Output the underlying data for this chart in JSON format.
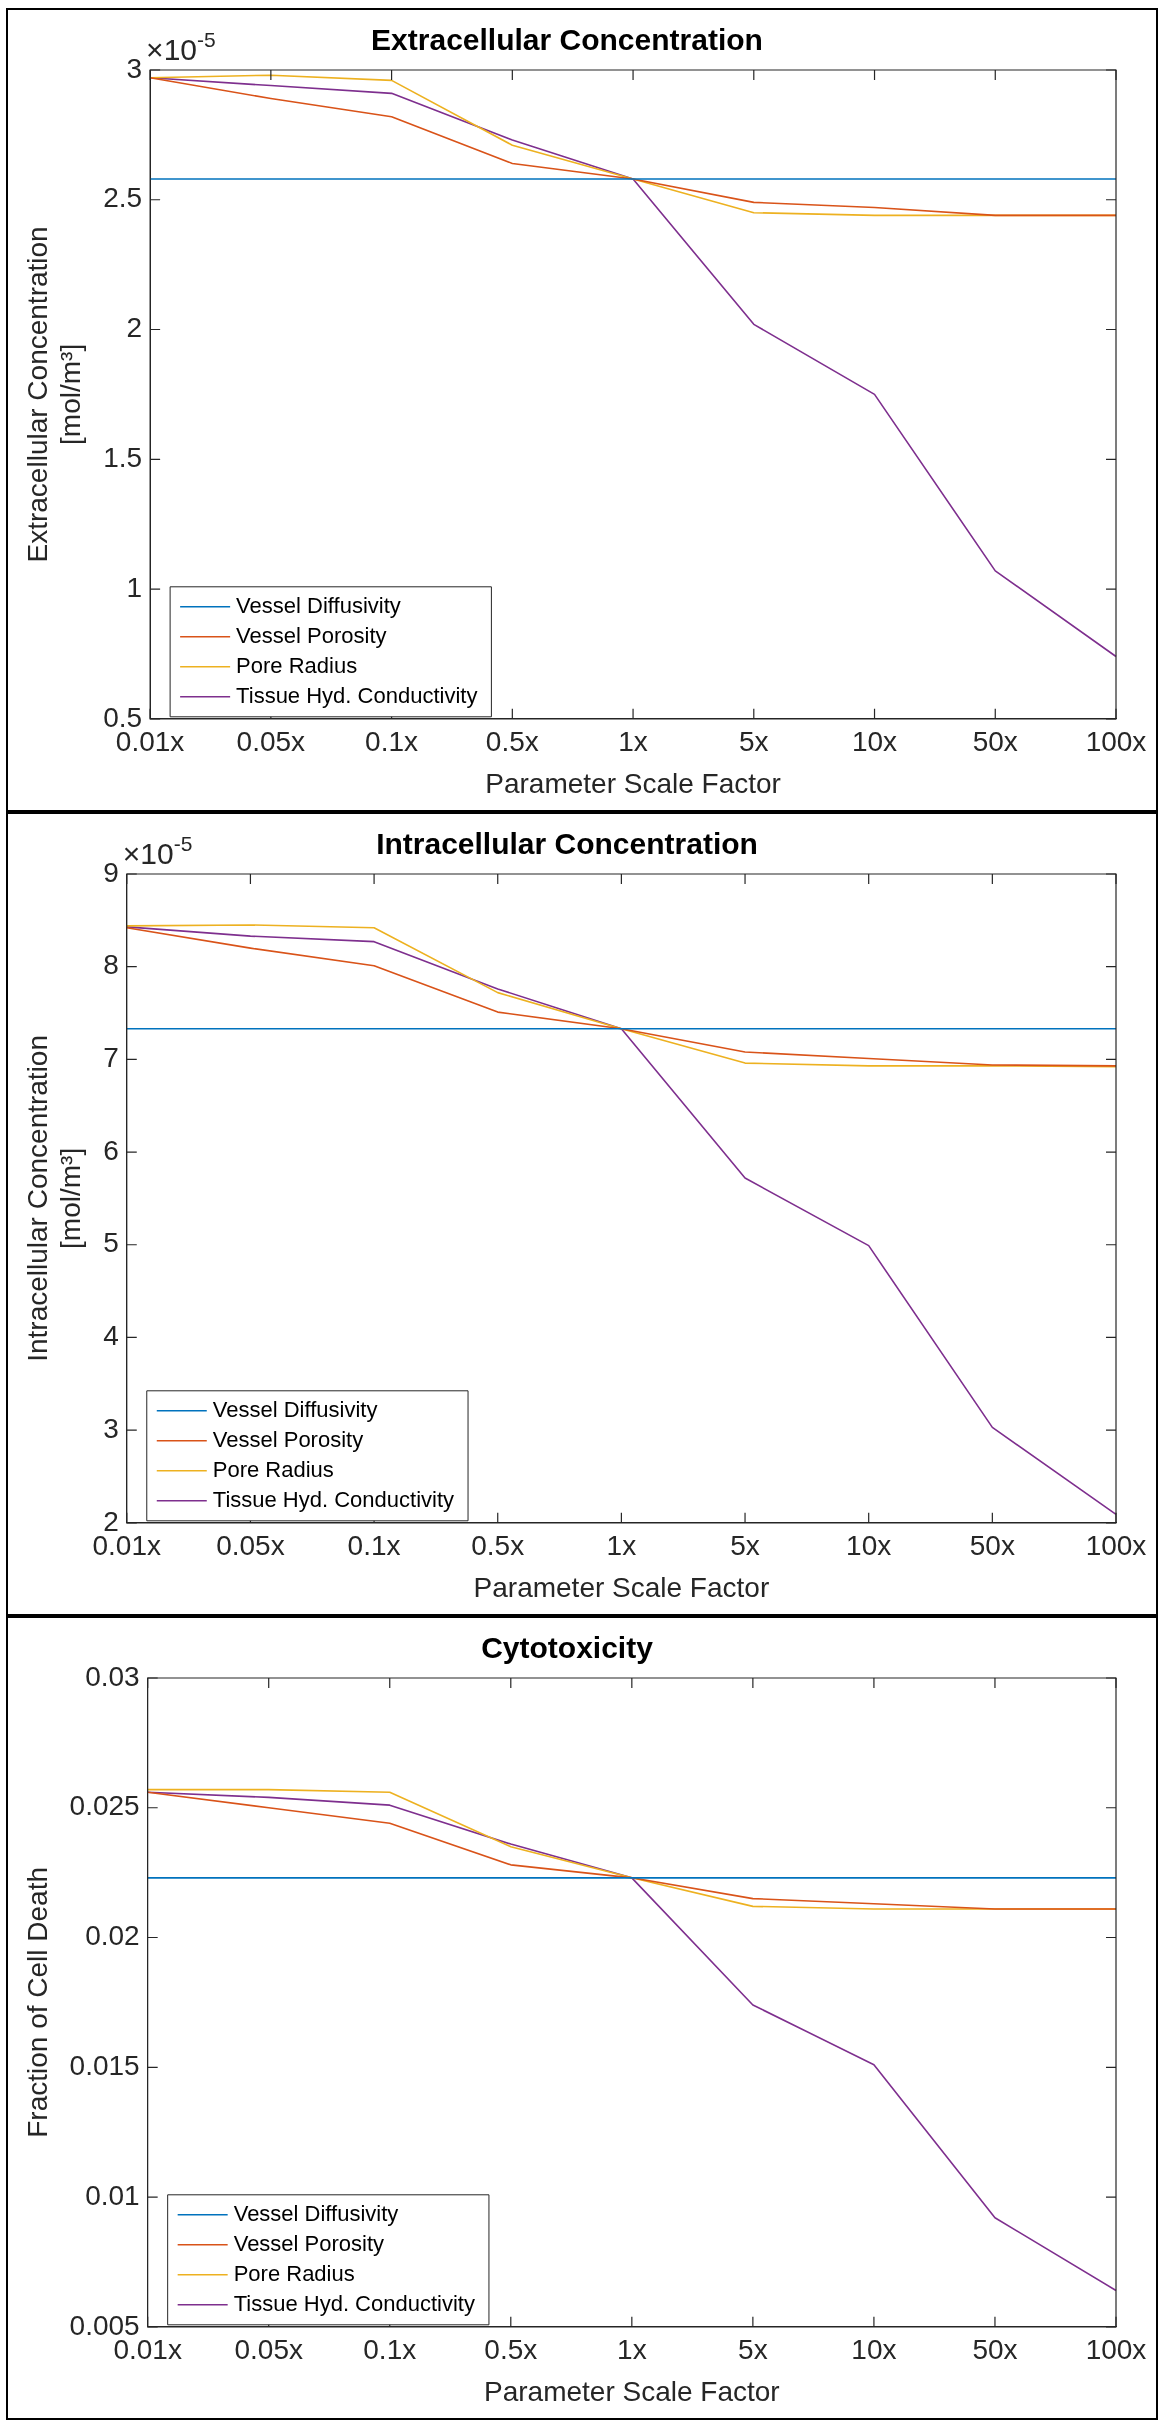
{
  "chart_data": [
    {
      "type": "line",
      "title": "Extracellular Concentration",
      "xlabel": "Parameter Scale Factor",
      "ylabel": "Extracellular Concentration [mol/m³]",
      "categories": [
        "0.01x",
        "0.05x",
        "0.1x",
        "0.5x",
        "1x",
        "5x",
        "10x",
        "50x",
        "100x"
      ],
      "series": [
        {
          "name": "Vessel Diffusivity",
          "color": "#0072bd",
          "values": [
            2.58,
            2.58,
            2.58,
            2.58,
            2.58,
            2.58,
            2.58,
            2.58,
            2.58
          ]
        },
        {
          "name": "Vessel Porosity",
          "color": "#d95319",
          "values": [
            2.97,
            2.89,
            2.82,
            2.64,
            2.58,
            2.49,
            2.47,
            2.44,
            2.44
          ]
        },
        {
          "name": "Pore Radius",
          "color": "#edb120",
          "values": [
            2.97,
            2.98,
            2.96,
            2.71,
            2.58,
            2.45,
            2.44,
            2.44,
            2.44
          ]
        },
        {
          "name": "Tissue Hyd. Conductivity",
          "color": "#7e2f8e",
          "values": [
            2.97,
            2.94,
            2.91,
            2.73,
            2.58,
            2.02,
            1.75,
            1.07,
            0.74
          ]
        }
      ],
      "ylim": [
        0.5,
        3
      ],
      "yticks": [
        0.5,
        1,
        1.5,
        2,
        2.5,
        3
      ],
      "annotations": [
        "×10$^{-5}$"
      ],
      "grid": false,
      "legend": "bottom left",
      "marker": "none",
      "line_style": "solid"
    },
    {
      "type": "line",
      "title": "Intracellular Concentration",
      "xlabel": "Parameter Scale Factor",
      "ylabel": "Intracellular Concentration [mol/m³]",
      "categories": [
        "0.01x",
        "0.05x",
        "0.1x",
        "0.5x",
        "1x",
        "5x",
        "10x",
        "50x",
        "100x"
      ],
      "series": [
        {
          "name": "Vessel Diffusivity",
          "color": "#0072bd",
          "values": [
            7.33,
            7.33,
            7.33,
            7.33,
            7.33,
            7.33,
            7.33,
            7.33,
            7.33
          ]
        },
        {
          "name": "Vessel Porosity",
          "color": "#d95319",
          "values": [
            8.42,
            8.2,
            8.01,
            7.51,
            7.33,
            7.08,
            7.01,
            6.94,
            6.93
          ]
        },
        {
          "name": "Pore Radius",
          "color": "#edb120",
          "values": [
            8.44,
            8.45,
            8.42,
            7.72,
            7.33,
            6.96,
            6.93,
            6.93,
            6.92
          ]
        },
        {
          "name": "Tissue Hyd. Conductivity",
          "color": "#7e2f8e",
          "values": [
            8.43,
            8.33,
            8.27,
            7.76,
            7.33,
            5.72,
            4.99,
            3.03,
            2.09
          ]
        }
      ],
      "ylim": [
        2,
        9
      ],
      "yticks": [
        2,
        3,
        4,
        5,
        6,
        7,
        8,
        9
      ],
      "annotations": [
        "×10$^{-5}$"
      ],
      "grid": false,
      "legend": "bottom left",
      "marker": "none",
      "line_style": "solid"
    },
    {
      "type": "line",
      "title": "Cytotoxicity",
      "xlabel": "Parameter Scale Factor",
      "ylabel": "Fraction of Cell Death",
      "categories": [
        "0.01x",
        "0.05x",
        "0.1x",
        "0.5x",
        "1x",
        "5x",
        "10x",
        "50x",
        "100x"
      ],
      "series": [
        {
          "name": "Vessel Diffusivity",
          "color": "#0072bd",
          "values": [
            0.0223,
            0.0223,
            0.0223,
            0.0223,
            0.0223,
            0.0223,
            0.0223,
            0.0223,
            0.0223
          ]
        },
        {
          "name": "Vessel Porosity",
          "color": "#d95319",
          "values": [
            0.0256,
            0.025,
            0.0244,
            0.0228,
            0.0223,
            0.0215,
            0.0213,
            0.0211,
            0.0211
          ]
        },
        {
          "name": "Pore Radius",
          "color": "#edb120",
          "values": [
            0.0257,
            0.0257,
            0.0256,
            0.0235,
            0.0223,
            0.0212,
            0.0211,
            0.0211,
            0.0211
          ]
        },
        {
          "name": "Tissue Hyd. Conductivity",
          "color": "#7e2f8e",
          "values": [
            0.0256,
            0.0254,
            0.0251,
            0.0236,
            0.0223,
            0.0174,
            0.0151,
            0.0092,
            0.0064
          ]
        }
      ],
      "ylim": [
        0.005,
        0.03
      ],
      "yticks": [
        0.005,
        0.01,
        0.015,
        0.02,
        0.025,
        0.03
      ],
      "grid": false,
      "legend": "bottom left",
      "marker": "none",
      "line_style": "solid"
    }
  ]
}
